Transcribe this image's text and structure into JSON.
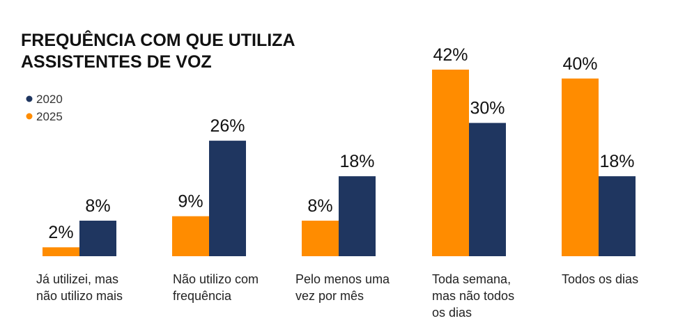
{
  "chart_data": {
    "type": "bar",
    "title_lines": [
      "FREQUÊNCIA COM QUE UTILIZA",
      "ASSISTENTES DE VOZ"
    ],
    "categories": [
      [
        "Já utilizei, mas",
        "não utilizo mais"
      ],
      [
        "Não utilizo com",
        "frequência"
      ],
      [
        "Pelo menos uma",
        "vez por mês"
      ],
      [
        "Toda semana,",
        "mas não todos",
        "os dias"
      ],
      [
        "Todos os dias"
      ]
    ],
    "series": [
      {
        "name": "2025",
        "color": "#FF8C00",
        "values": [
          2,
          9,
          8,
          42,
          40
        ],
        "labels": [
          "2%",
          "9%",
          "8%",
          "42%",
          "40%"
        ]
      },
      {
        "name": "2020",
        "color": "#1F3660",
        "values": [
          8,
          26,
          18,
          30,
          18
        ],
        "labels": [
          "8%",
          "26%",
          "18%",
          "30%",
          "18%"
        ]
      }
    ],
    "legend": [
      {
        "name": "2020",
        "color": "#1F3660"
      },
      {
        "name": "2025",
        "color": "#FF8C00"
      }
    ],
    "legend_position": "top-left",
    "ylim": [
      0,
      42
    ],
    "grid": false,
    "xlabel": "",
    "ylabel": ""
  }
}
